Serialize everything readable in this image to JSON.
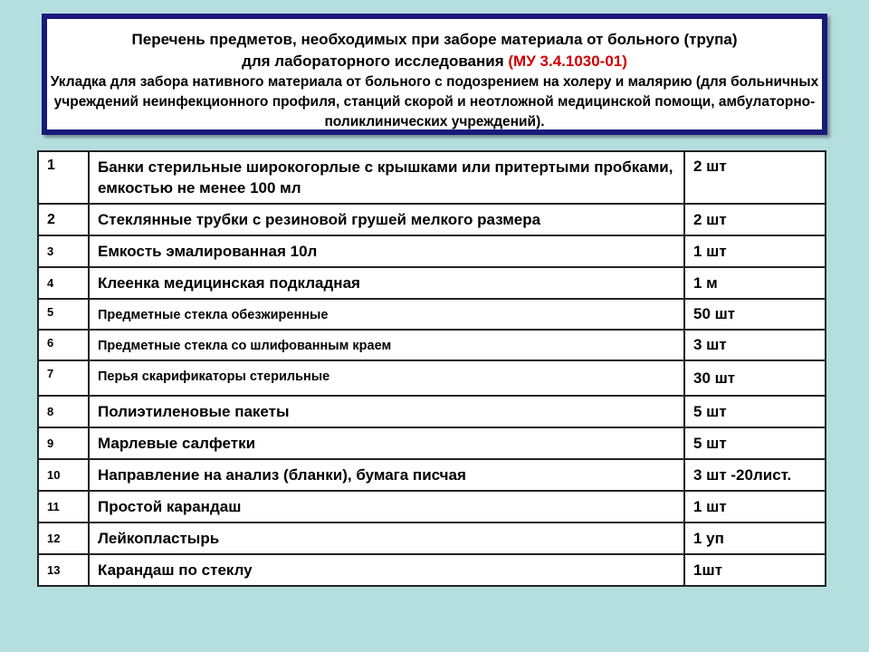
{
  "header": {
    "title_line1": "Перечень предметов, необходимых при заборе материала от больного (трупа)",
    "title_line2": "для лабораторного исследования",
    "title_ref": "(МУ 3.4.1030-01)",
    "subtitle": "Укладка для забора нативного материала от больного с подозрением на холеру и малярию (для больничных учреждений неинфекционного профиля, станций скорой и неотложной медицинской помощи, амбулаторно-поликлинических учреждений).",
    "ref_color": "#cc0000",
    "border_color": "#1a1a7a"
  },
  "table": {
    "rows": [
      {
        "n": "1",
        "item": "Банки стерильные широкогорлые с крышками или притертыми пробками, емкостью не менее 100 мл",
        "qty": "2 шт"
      },
      {
        "n": "2",
        "item": "Стеклянные трубки с резиновой грушей мелкого размера",
        "qty": "2 шт"
      },
      {
        "n": "3",
        "item": "Емкость эмалированная 10л",
        "qty": "1 шт"
      },
      {
        "n": "4",
        "item": "Клеенка медицинская подкладная",
        "qty": "1 м"
      },
      {
        "n": "5",
        "item": "Предметные стекла обезжиренные",
        "qty": "50 шт"
      },
      {
        "n": "6",
        "item": "Предметные стекла со шлифованным краем",
        "qty": "3 шт"
      },
      {
        "n": "7",
        "item": "Перья скарификаторы стерильные",
        "qty": "30 шт"
      },
      {
        "n": "8",
        "item": "Полиэтиленовые пакеты",
        "qty": "5 шт"
      },
      {
        "n": "9",
        "item": "Марлевые салфетки",
        "qty": "5 шт"
      },
      {
        "n": "10",
        "item": "Направление на анализ (бланки), бумага писчая",
        "qty": "3 шт -20лист."
      },
      {
        "n": "11",
        "item": "Простой карандаш",
        "qty": "1 шт"
      },
      {
        "n": "12",
        "item": "Лейкопластырь",
        "qty": "1 уп"
      },
      {
        "n": "13",
        "item": "Карандаш по стеклу",
        "qty": "1шт"
      }
    ]
  }
}
